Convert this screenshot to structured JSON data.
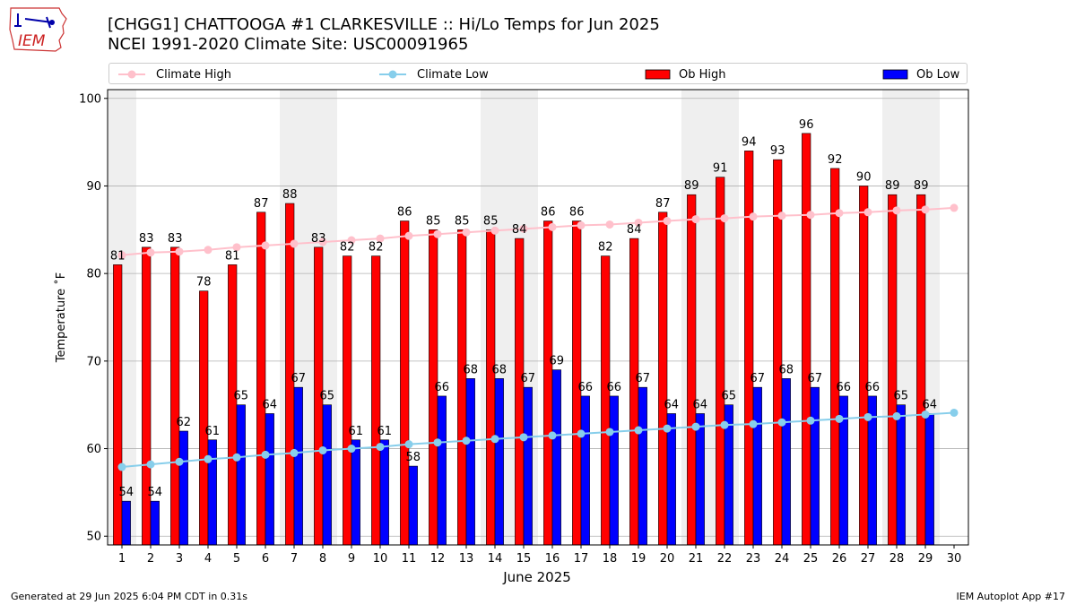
{
  "header": {
    "line1": "[CHGG1] CHATTOOGA #1 CLARKESVILLE :: Hi/Lo Temps for Jun 2025",
    "line2": "NCEI 1991-2020 Climate Site: USC00091965"
  },
  "logo": {
    "text": "IEM",
    "icon": "iowa-state-outline-logo"
  },
  "legend": {
    "climate_high": "Climate High",
    "climate_low": "Climate Low",
    "ob_high": "Ob High",
    "ob_low": "Ob Low"
  },
  "footer": {
    "generated": "Generated at 29 Jun 2025 6:04 PM CDT in 0.31s",
    "app": "IEM Autoplot App #17"
  },
  "colors": {
    "ob_high": "#ff0000",
    "ob_low": "#0000ff",
    "climate_high": "#ffc0cb",
    "climate_low": "#87ceeb",
    "weekend_band": "#efefef"
  },
  "chart_data": {
    "type": "bar",
    "title": "[CHGG1] CHATTOOGA #1 CLARKESVILLE :: Hi/Lo Temps for Jun 2025",
    "subtitle": "NCEI 1991-2020 Climate Site: USC00091965",
    "xlabel": "June 2025",
    "ylabel": "Temperature ˚F",
    "ylim": [
      49,
      101
    ],
    "xlim": [
      0.5,
      30.5
    ],
    "yticks": [
      50,
      60,
      70,
      80,
      90,
      100
    ],
    "grid": "y",
    "legend_position": "top",
    "categories": [
      1,
      2,
      3,
      4,
      5,
      6,
      7,
      8,
      9,
      10,
      11,
      12,
      13,
      14,
      15,
      16,
      17,
      18,
      19,
      20,
      21,
      22,
      23,
      24,
      25,
      26,
      27,
      28,
      29,
      30
    ],
    "weekend_bands": [
      [
        0.5,
        1.5
      ],
      [
        6.5,
        8.5
      ],
      [
        13.5,
        15.5
      ],
      [
        20.5,
        22.5
      ],
      [
        27.5,
        29.5
      ]
    ],
    "ob_high": [
      81,
      83,
      83,
      78,
      81,
      87,
      88,
      83,
      82,
      82,
      86,
      85,
      85,
      85,
      84,
      86,
      86,
      82,
      84,
      87,
      89,
      91,
      94,
      93,
      96,
      92,
      90,
      89,
      89
    ],
    "ob_low": [
      54,
      54,
      62,
      61,
      65,
      64,
      67,
      65,
      61,
      61,
      58,
      66,
      68,
      68,
      67,
      69,
      66,
      66,
      67,
      64,
      64,
      65,
      67,
      68,
      67,
      66,
      66,
      65,
      64
    ],
    "climate_high": [
      82.1,
      82.4,
      82.5,
      82.7,
      83.0,
      83.2,
      83.4,
      83.6,
      83.8,
      84.0,
      84.3,
      84.5,
      84.7,
      84.9,
      85.1,
      85.3,
      85.5,
      85.6,
      85.8,
      86.0,
      86.2,
      86.3,
      86.5,
      86.6,
      86.7,
      86.9,
      87.0,
      87.2,
      87.3,
      87.5
    ],
    "climate_low": [
      57.9,
      58.2,
      58.5,
      58.8,
      59.0,
      59.3,
      59.5,
      59.8,
      60.0,
      60.2,
      60.5,
      60.7,
      60.9,
      61.1,
      61.3,
      61.5,
      61.7,
      61.9,
      62.1,
      62.3,
      62.5,
      62.7,
      62.8,
      63.0,
      63.2,
      63.4,
      63.6,
      63.7,
      63.9,
      64.1
    ]
  }
}
